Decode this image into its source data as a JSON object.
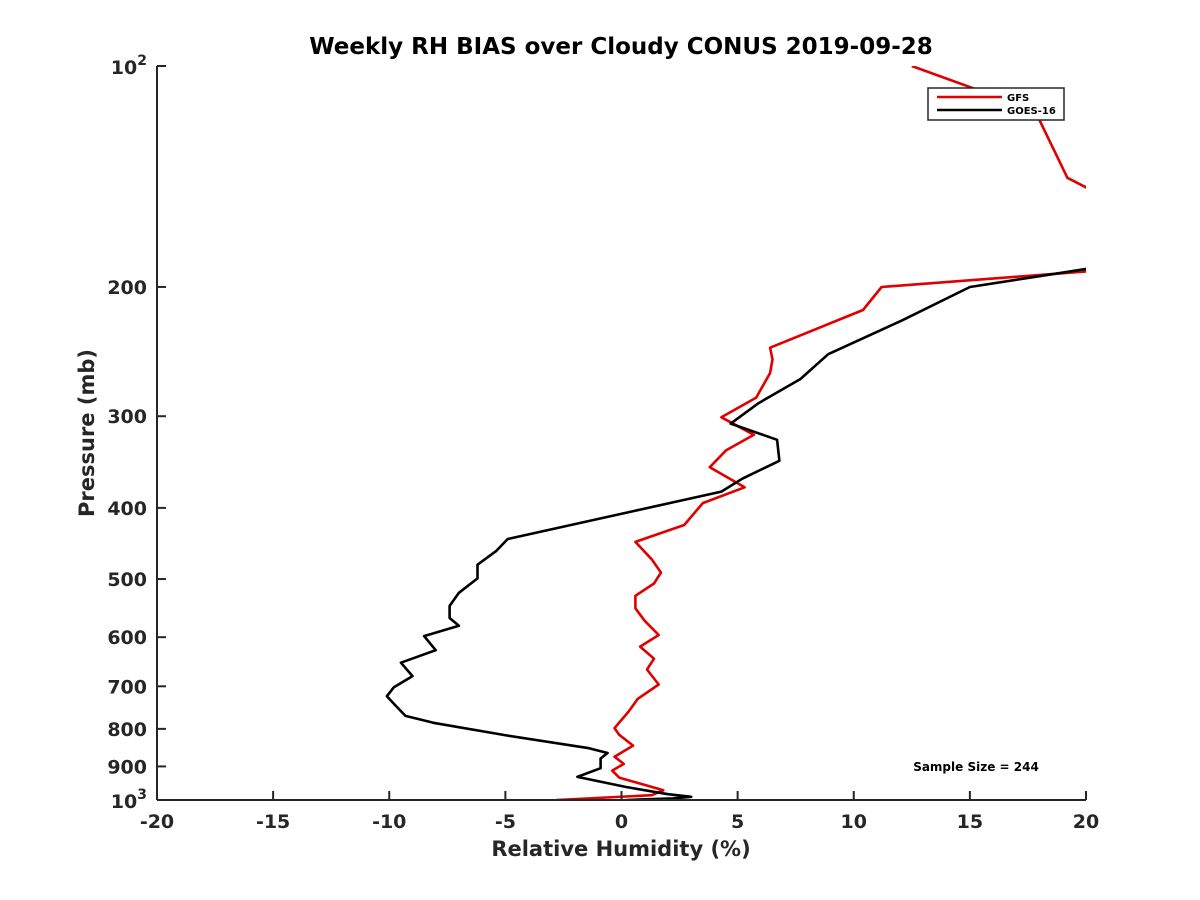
{
  "chart_data": {
    "type": "line",
    "title": "Weekly RH BIAS over Cloudy CONUS 2019-09-28",
    "xlabel": "Relative Humidity (%)",
    "ylabel": "Pressure (mb)",
    "xlim": [
      -20,
      20
    ],
    "ylim": [
      100,
      1000
    ],
    "yscale": "log",
    "y_reversed": true,
    "grid": false,
    "legend_position": "top-right",
    "x_ticks": [
      -20,
      -15,
      -10,
      -5,
      0,
      5,
      10,
      15,
      20
    ],
    "x_tick_labels": [
      "-20",
      "-15",
      "-10",
      "-5",
      "0",
      "5",
      "10",
      "15",
      "20"
    ],
    "y_ticks": [
      200,
      300,
      400,
      500,
      600,
      700,
      800,
      900
    ],
    "y_tick_labels": [
      "200",
      "300",
      "400",
      "500",
      "600",
      "700",
      "800",
      "900"
    ],
    "y_limit_labels": [
      {
        "value": 100,
        "base": "10",
        "exp": "2"
      },
      {
        "value": 1000,
        "base": "10",
        "exp": "3"
      }
    ],
    "annotation": "Sample Size = 244",
    "series": [
      {
        "name": "GFS",
        "color": "#e00000",
        "points": [
          [
            12.5,
            100
          ],
          [
            17.8,
            115
          ],
          [
            19.2,
            142
          ],
          [
            20.3,
            148
          ],
          [
            20.5,
            190
          ],
          [
            11.2,
            200
          ],
          [
            10.4,
            215
          ],
          [
            6.4,
            242
          ],
          [
            6.5,
            251
          ],
          [
            6.4,
            262
          ],
          [
            5.8,
            283
          ],
          [
            4.3,
            301
          ],
          [
            5.7,
            318
          ],
          [
            4.5,
            334
          ],
          [
            3.8,
            352
          ],
          [
            5.3,
            375
          ],
          [
            3.5,
            394
          ],
          [
            2.7,
            422
          ],
          [
            0.6,
            445
          ],
          [
            1.3,
            470
          ],
          [
            1.7,
            490
          ],
          [
            1.4,
            507
          ],
          [
            0.6,
            527
          ],
          [
            0.6,
            548
          ],
          [
            1.0,
            570
          ],
          [
            1.6,
            596
          ],
          [
            0.8,
            618
          ],
          [
            1.4,
            642
          ],
          [
            1.1,
            664
          ],
          [
            1.6,
            696
          ],
          [
            0.7,
            728
          ],
          [
            0.3,
            758
          ],
          [
            -0.3,
            798
          ],
          [
            -0.1,
            815
          ],
          [
            0.5,
            843
          ],
          [
            -0.3,
            873
          ],
          [
            0.1,
            893
          ],
          [
            -0.4,
            912
          ],
          [
            -0.1,
            932
          ],
          [
            1.8,
            970
          ],
          [
            1.3,
            985
          ],
          [
            -2.8,
            1000
          ]
        ]
      },
      {
        "name": "GOES-16",
        "color": "#000000",
        "points": [
          [
            20.5,
            188
          ],
          [
            15.0,
            200
          ],
          [
            12.1,
            222
          ],
          [
            8.9,
            247
          ],
          [
            7.7,
            267
          ],
          [
            5.9,
            288
          ],
          [
            4.7,
            307
          ],
          [
            6.7,
            323
          ],
          [
            6.8,
            345
          ],
          [
            5.2,
            365
          ],
          [
            4.3,
            380
          ],
          [
            -4.9,
            441
          ],
          [
            -5.4,
            458
          ],
          [
            -6.2,
            478
          ],
          [
            -6.2,
            499
          ],
          [
            -7.0,
            522
          ],
          [
            -7.4,
            544
          ],
          [
            -7.4,
            565
          ],
          [
            -7.0,
            579
          ],
          [
            -8.5,
            598
          ],
          [
            -8.0,
            625
          ],
          [
            -9.5,
            650
          ],
          [
            -9.0,
            678
          ],
          [
            -9.8,
            702
          ],
          [
            -10.1,
            722
          ],
          [
            -9.7,
            745
          ],
          [
            -9.3,
            768
          ],
          [
            -8.1,
            785
          ],
          [
            -4.9,
            817
          ],
          [
            -1.4,
            850
          ],
          [
            -0.6,
            863
          ],
          [
            -0.9,
            878
          ],
          [
            -0.9,
            905
          ],
          [
            -1.9,
            930
          ],
          [
            0.2,
            960
          ],
          [
            2.0,
            982
          ],
          [
            3.0,
            990
          ],
          [
            2.2,
            995
          ],
          [
            0.2,
            1000
          ]
        ]
      }
    ]
  }
}
